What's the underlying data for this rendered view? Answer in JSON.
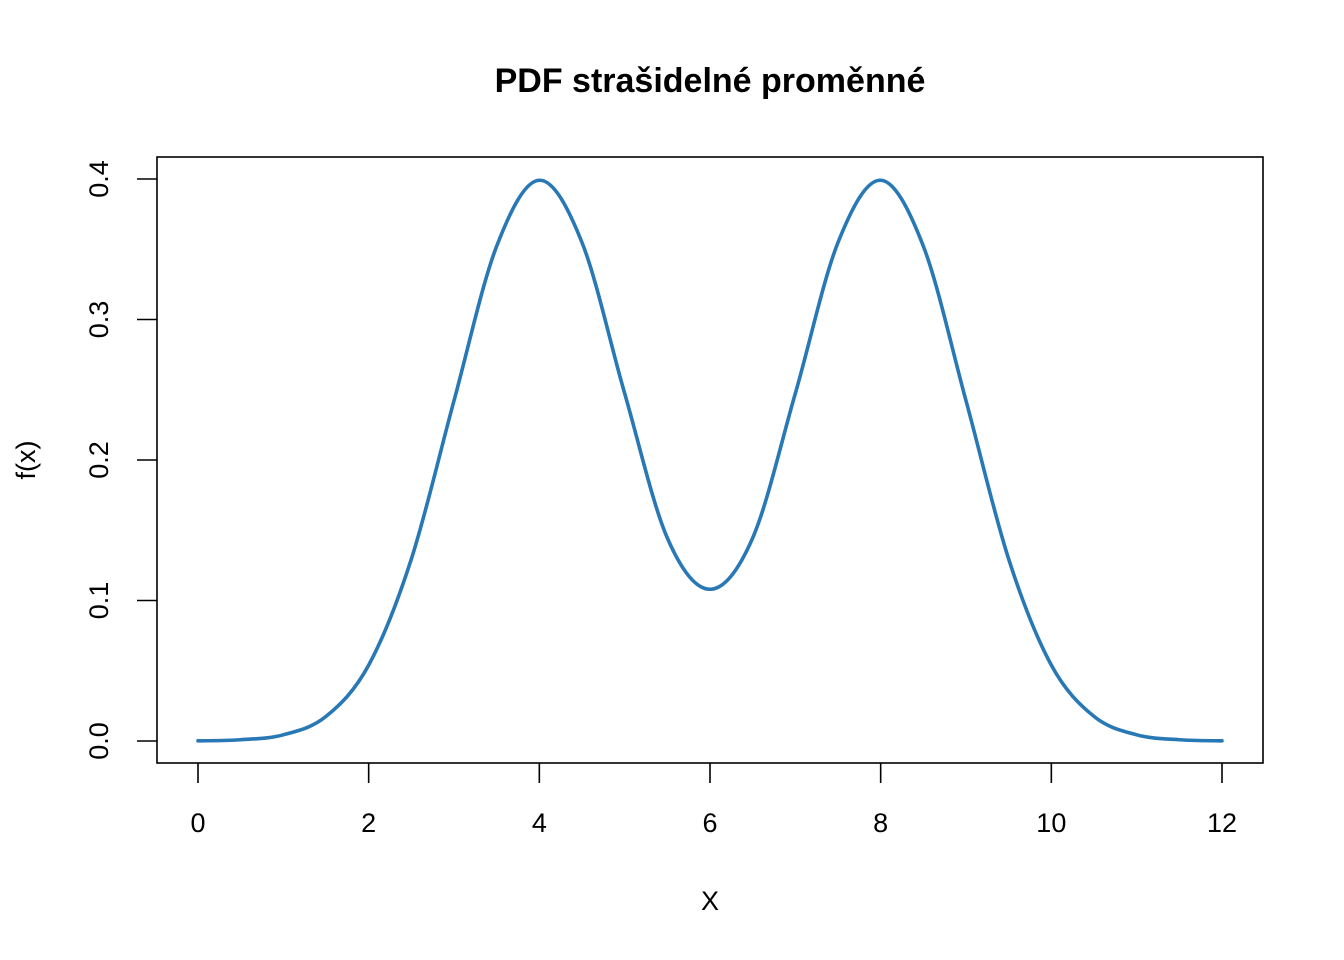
{
  "chart_data": {
    "type": "line",
    "title": "PDF strašidelné proměnné",
    "xlabel": "X",
    "ylabel": "f(x)",
    "xlim": [
      0,
      12
    ],
    "ylim": [
      0,
      0.4
    ],
    "xticks": [
      0,
      2,
      4,
      6,
      8,
      10,
      12
    ],
    "xtick_labels": [
      "0",
      "2",
      "4",
      "6",
      "8",
      "10",
      "12"
    ],
    "yticks": [
      0.0,
      0.1,
      0.2,
      0.3,
      0.4
    ],
    "ytick_labels": [
      "0.0",
      "0.1",
      "0.2",
      "0.3",
      "0.4"
    ],
    "grid": false,
    "legend": "none",
    "series": [
      {
        "color": "#2878b5",
        "x": [
          0,
          0.5,
          1,
          1.5,
          2,
          2.5,
          3,
          3.5,
          4,
          4.5,
          5,
          5.5,
          6,
          6.5,
          7,
          7.5,
          8,
          8.5,
          9,
          9.5,
          10,
          10.5,
          11,
          11.5,
          12
        ],
        "y": [
          0.0001,
          0.0009,
          0.0044,
          0.0175,
          0.054,
          0.1295,
          0.2422,
          0.3522,
          0.3991,
          0.3548,
          0.2474,
          0.1445,
          0.108,
          0.1445,
          0.2474,
          0.3548,
          0.3991,
          0.3522,
          0.2422,
          0.1295,
          0.054,
          0.0175,
          0.0044,
          0.0009,
          0.0001
        ]
      }
    ]
  }
}
